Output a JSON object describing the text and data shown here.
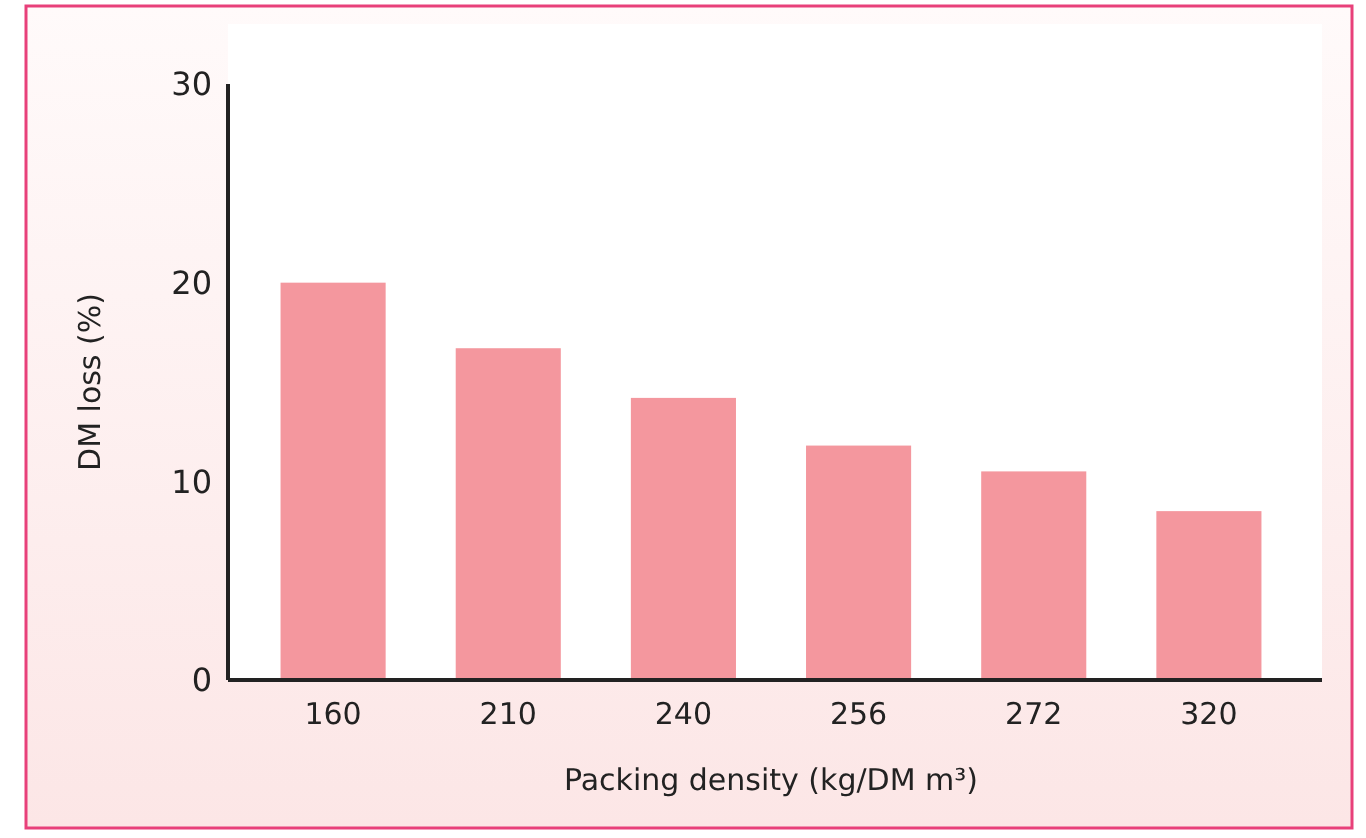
{
  "chart_data": {
    "type": "bar",
    "xlabel": "Packing density (kg/DM m³)",
    "ylabel": "DM loss (%)",
    "categories": [
      "160",
      "210",
      "240",
      "256",
      "272",
      "320"
    ],
    "values": [
      20,
      16.7,
      14.2,
      11.8,
      10.5,
      8.5
    ],
    "color": "#f4979e",
    "ylim": [
      0,
      30
    ],
    "yticks": [
      0,
      10,
      20,
      30
    ],
    "grid": false
  }
}
